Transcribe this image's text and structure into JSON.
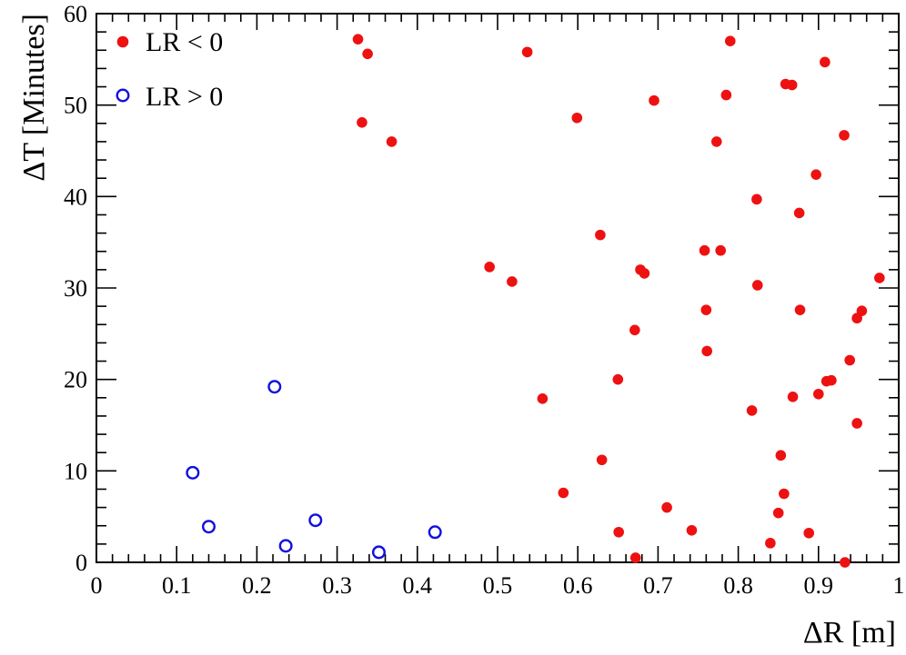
{
  "chart_data": {
    "type": "scatter",
    "title": "",
    "xlabel": "ΔR [m]",
    "ylabel": "ΔT [Minutes]",
    "xlim": [
      0,
      1
    ],
    "ylim": [
      0,
      60
    ],
    "xticks": [
      0,
      0.1,
      0.2,
      0.3,
      0.4,
      0.5,
      0.6,
      0.7,
      0.8,
      0.9,
      1
    ],
    "xtick_labels": [
      "0",
      "0.1",
      "0.2",
      "0.3",
      "0.4",
      "0.5",
      "0.6",
      "0.7",
      "0.8",
      "0.9",
      "1"
    ],
    "yticks": [
      0,
      10,
      20,
      30,
      40,
      50,
      60
    ],
    "ytick_labels": [
      "0",
      "10",
      "20",
      "30",
      "40",
      "50",
      "60"
    ],
    "grid": false,
    "legend_position": "top-left",
    "series": [
      {
        "name": "LR < 0",
        "marker": "filled-circle",
        "color": "#ee1111",
        "points": [
          [
            0.326,
            57.2
          ],
          [
            0.338,
            55.6
          ],
          [
            0.331,
            48.1
          ],
          [
            0.368,
            46.0
          ],
          [
            0.537,
            55.8
          ],
          [
            0.599,
            48.6
          ],
          [
            0.49,
            32.3
          ],
          [
            0.518,
            30.7
          ],
          [
            0.556,
            17.9
          ],
          [
            0.582,
            7.6
          ],
          [
            0.628,
            35.8
          ],
          [
            0.63,
            11.2
          ],
          [
            0.65,
            20.0
          ],
          [
            0.651,
            3.3
          ],
          [
            0.671,
            25.4
          ],
          [
            0.672,
            0.5
          ],
          [
            0.678,
            32.0
          ],
          [
            0.683,
            31.6
          ],
          [
            0.695,
            50.5
          ],
          [
            0.711,
            6.0
          ],
          [
            0.742,
            3.5
          ],
          [
            0.758,
            34.1
          ],
          [
            0.76,
            27.6
          ],
          [
            0.761,
            23.1
          ],
          [
            0.773,
            46.0
          ],
          [
            0.778,
            34.1
          ],
          [
            0.785,
            51.1
          ],
          [
            0.79,
            57.0
          ],
          [
            0.817,
            16.6
          ],
          [
            0.823,
            39.7
          ],
          [
            0.824,
            30.3
          ],
          [
            0.84,
            2.1
          ],
          [
            0.85,
            5.4
          ],
          [
            0.853,
            11.7
          ],
          [
            0.857,
            7.5
          ],
          [
            0.859,
            52.3
          ],
          [
            0.867,
            52.2
          ],
          [
            0.868,
            18.1
          ],
          [
            0.876,
            38.2
          ],
          [
            0.877,
            27.6
          ],
          [
            0.888,
            3.2
          ],
          [
            0.897,
            42.4
          ],
          [
            0.9,
            18.4
          ],
          [
            0.908,
            54.7
          ],
          [
            0.91,
            19.8
          ],
          [
            0.916,
            19.9
          ],
          [
            0.932,
            46.7
          ],
          [
            0.933,
            0.0
          ],
          [
            0.939,
            22.1
          ],
          [
            0.948,
            26.7
          ],
          [
            0.948,
            15.2
          ],
          [
            0.954,
            27.5
          ],
          [
            0.976,
            31.1
          ]
        ]
      },
      {
        "name": "LR > 0",
        "marker": "open-circle",
        "color": "#1111dd",
        "points": [
          [
            0.12,
            9.8
          ],
          [
            0.14,
            3.9
          ],
          [
            0.222,
            19.2
          ],
          [
            0.236,
            1.8
          ],
          [
            0.273,
            4.6
          ],
          [
            0.352,
            1.1
          ],
          [
            0.422,
            3.3
          ]
        ]
      }
    ]
  }
}
